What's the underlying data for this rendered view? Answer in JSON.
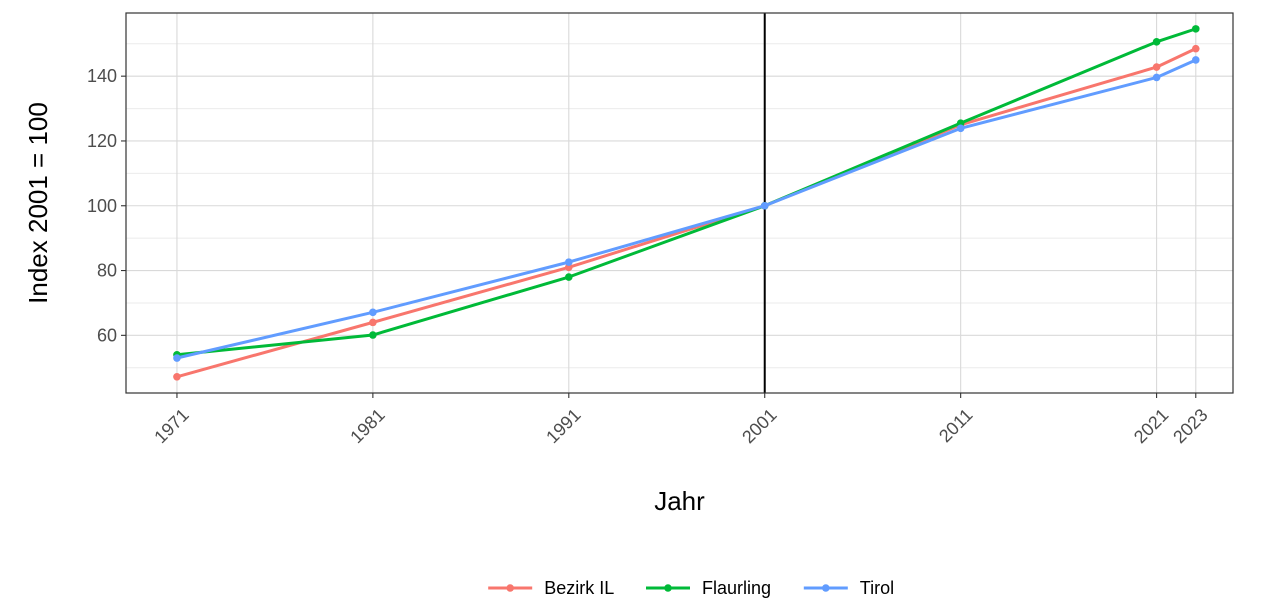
{
  "chart_data": {
    "type": "line",
    "title": "",
    "xlabel": "Jahr",
    "ylabel": "Index 2001 = 100",
    "x": [
      1971,
      1981,
      1991,
      2001,
      2011,
      2021,
      2023
    ],
    "x_tick_labels": [
      "1971",
      "1981",
      "1991",
      "2001",
      "2011",
      "2021",
      "2023"
    ],
    "y_ticks": [
      60,
      80,
      100,
      120,
      140
    ],
    "y_tick_labels": [
      "60",
      "80",
      "100",
      "120",
      "140"
    ],
    "xlim": [
      1968.4,
      2024.9
    ],
    "ylim": [
      42.2,
      159.5
    ],
    "reference_line_x": 2001,
    "grid": true,
    "legend_position": "bottom",
    "series": [
      {
        "name": "Bezirk IL",
        "color": "#F8766D",
        "values": [
          47.2,
          64.0,
          81.0,
          100,
          125.0,
          142.8,
          148.5
        ]
      },
      {
        "name": "Flaurling",
        "color": "#00BA38",
        "values": [
          54.0,
          60.1,
          78.0,
          100,
          125.5,
          150.6,
          154.6
        ]
      },
      {
        "name": "Tirol",
        "color": "#619CFF",
        "values": [
          53.0,
          67.1,
          82.6,
          100,
          123.9,
          139.6,
          145.0
        ]
      }
    ]
  }
}
